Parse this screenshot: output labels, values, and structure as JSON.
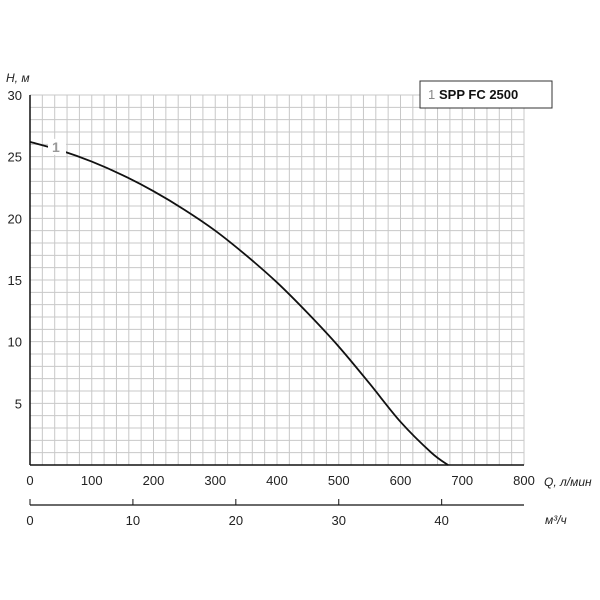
{
  "chart_data": {
    "type": "line",
    "ylabel": "H, м",
    "xlabel": "Q, л/мин",
    "x2label": "м³/ч",
    "xlim": [
      0,
      800
    ],
    "ylim": [
      0,
      30
    ],
    "x2lim": [
      0,
      48
    ],
    "x_ticks": [
      0,
      100,
      200,
      300,
      400,
      500,
      600,
      700,
      800
    ],
    "x2_ticks": [
      0,
      10,
      20,
      30,
      40
    ],
    "y_ticks": [
      5,
      10,
      15,
      20,
      25,
      30
    ],
    "grid": true,
    "legend_position": "top-right",
    "series": [
      {
        "name": "SPP FC 2500",
        "label": "1",
        "x": [
          0,
          50,
          100,
          150,
          200,
          250,
          300,
          350,
          400,
          450,
          500,
          550,
          600,
          650,
          677
        ],
        "y": [
          26.2,
          25.5,
          24.6,
          23.5,
          22.2,
          20.7,
          19.0,
          17.0,
          14.8,
          12.3,
          9.6,
          6.6,
          3.5,
          1.0,
          0
        ]
      }
    ]
  }
}
